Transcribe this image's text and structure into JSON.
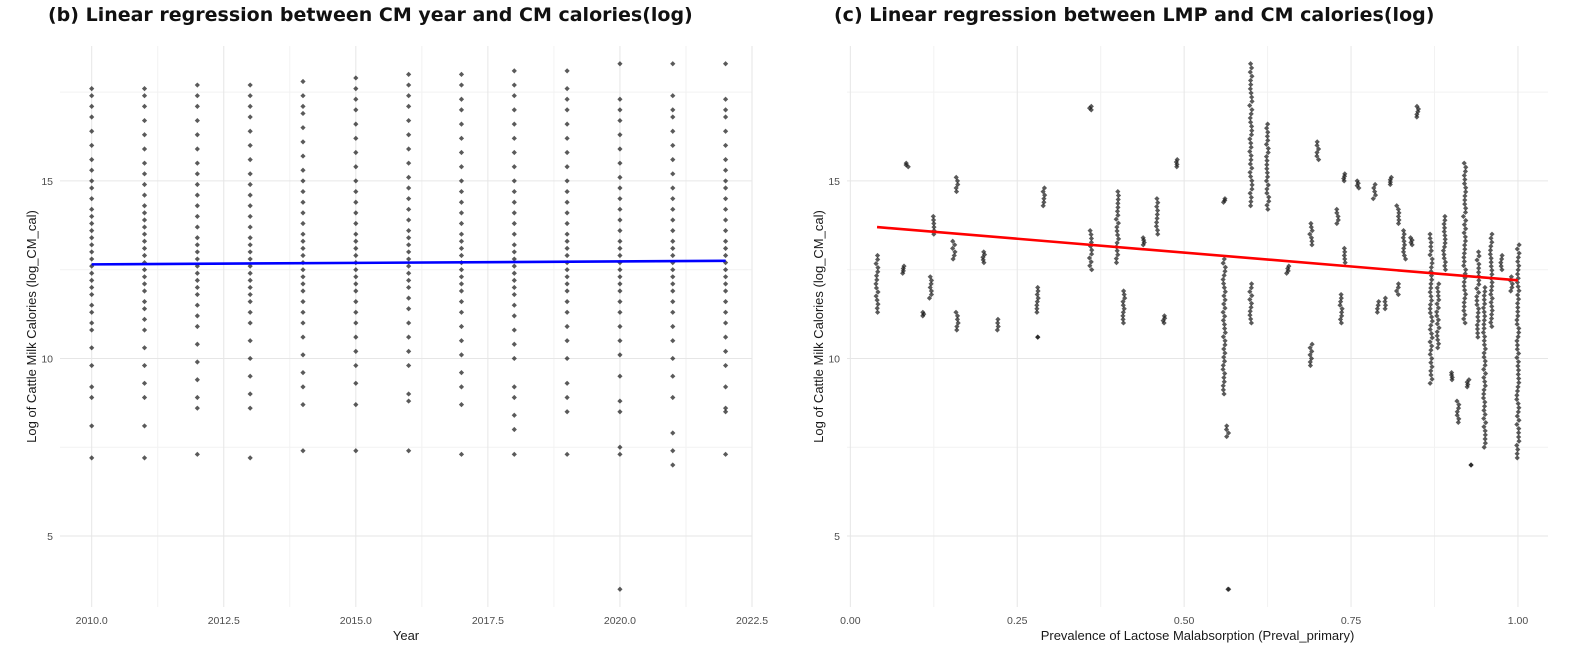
{
  "chart_data": [
    {
      "type": "scatter",
      "title": "(b) Linear regression between CM year and CM calories(log)",
      "xlabel": "Year",
      "ylabel": "Log of Cattle Milk Calories (log_CM_cal)",
      "xlim": [
        2009.4,
        2022.5
      ],
      "ylim": [
        3.0,
        18.8
      ],
      "xticks": [
        2010.0,
        2012.5,
        2015.0,
        2017.5,
        2020.0,
        2022.5
      ],
      "xtick_labels": [
        "2010.0",
        "2012.5",
        "2015.0",
        "2017.5",
        "2020.0",
        "2022.5"
      ],
      "yticks": [
        5,
        10,
        15
      ],
      "ytick_labels": [
        "5",
        "10",
        "15"
      ],
      "grid": true,
      "point_color": "#1a1a1a",
      "line_color": "#0000ff",
      "series": [
        {
          "x": [
            2010,
            2011,
            2012,
            2013,
            2014,
            2015,
            2016,
            2017,
            2018,
            2019,
            2020,
            2021,
            2022
          ],
          "y_values": [
            [
              7.2,
              8.1,
              8.9,
              9.2,
              9.8,
              10.3,
              10.8,
              11.0,
              11.3,
              11.5,
              11.8,
              12.0,
              12.2,
              12.4,
              12.6,
              12.8,
              13.0,
              13.2,
              13.4,
              13.6,
              13.8,
              14.0,
              14.2,
              14.5,
              14.8,
              15.0,
              15.3,
              15.6,
              16.0,
              16.4,
              16.8,
              17.1,
              17.4,
              17.6
            ],
            [
              7.2,
              8.1,
              8.9,
              9.3,
              9.8,
              10.3,
              10.8,
              11.1,
              11.4,
              11.6,
              11.9,
              12.1,
              12.3,
              12.5,
              12.7,
              12.9,
              13.1,
              13.3,
              13.5,
              13.7,
              13.9,
              14.1,
              14.3,
              14.6,
              14.9,
              15.2,
              15.5,
              15.9,
              16.3,
              16.7,
              17.1,
              17.4,
              17.6
            ],
            [
              7.3,
              8.6,
              8.9,
              9.4,
              9.9,
              10.4,
              10.9,
              11.2,
              11.5,
              11.8,
              12.0,
              12.2,
              12.4,
              12.6,
              12.8,
              13.0,
              13.2,
              13.4,
              13.7,
              14.0,
              14.3,
              14.6,
              14.9,
              15.2,
              15.5,
              15.9,
              16.3,
              16.7,
              17.1,
              17.4,
              17.7
            ],
            [
              7.2,
              8.6,
              9.0,
              9.5,
              10.0,
              10.5,
              11.0,
              11.3,
              11.6,
              11.8,
              12.0,
              12.2,
              12.4,
              12.6,
              12.8,
              13.0,
              13.2,
              13.4,
              13.7,
              14.0,
              14.3,
              14.6,
              14.9,
              15.2,
              15.6,
              16.0,
              16.4,
              16.8,
              17.1,
              17.4,
              17.7
            ],
            [
              7.4,
              8.7,
              9.2,
              9.6,
              10.1,
              10.6,
              11.0,
              11.3,
              11.6,
              11.9,
              12.1,
              12.3,
              12.5,
              12.7,
              12.9,
              13.1,
              13.3,
              13.5,
              13.8,
              14.1,
              14.4,
              14.7,
              15.0,
              15.3,
              15.7,
              16.1,
              16.5,
              16.9,
              17.1,
              17.4,
              17.8
            ],
            [
              7.4,
              8.7,
              9.3,
              9.8,
              10.2,
              10.6,
              11.0,
              11.3,
              11.6,
              11.9,
              12.1,
              12.3,
              12.5,
              12.7,
              12.9,
              13.1,
              13.3,
              13.5,
              13.8,
              14.1,
              14.4,
              14.7,
              15.0,
              15.4,
              15.8,
              16.2,
              16.6,
              17.0,
              17.3,
              17.6,
              17.9
            ],
            [
              7.4,
              8.8,
              9.0,
              9.8,
              10.2,
              10.6,
              11.0,
              11.4,
              11.7,
              12.0,
              12.2,
              12.4,
              12.6,
              12.8,
              13.0,
              13.2,
              13.4,
              13.6,
              13.9,
              14.2,
              14.5,
              14.8,
              15.1,
              15.5,
              15.9,
              16.3,
              16.7,
              17.1,
              17.4,
              17.7,
              18.0
            ],
            [
              7.3,
              8.7,
              9.2,
              9.6,
              10.1,
              10.5,
              10.9,
              11.3,
              11.6,
              11.9,
              12.1,
              12.3,
              12.5,
              12.7,
              12.9,
              13.1,
              13.3,
              13.5,
              13.8,
              14.1,
              14.4,
              14.7,
              15.0,
              15.4,
              15.8,
              16.2,
              16.6,
              17.0,
              17.3,
              17.7,
              18.0
            ],
            [
              7.3,
              8.0,
              8.4,
              8.9,
              9.2,
              10.0,
              10.4,
              10.8,
              11.2,
              11.5,
              11.8,
              12.0,
              12.2,
              12.4,
              12.6,
              12.8,
              13.0,
              13.2,
              13.5,
              13.8,
              14.1,
              14.4,
              14.7,
              15.0,
              15.4,
              15.8,
              16.2,
              16.6,
              17.0,
              17.4,
              17.7,
              18.1
            ],
            [
              7.3,
              8.5,
              8.9,
              9.3,
              10.0,
              10.5,
              10.9,
              11.3,
              11.6,
              11.9,
              12.1,
              12.3,
              12.5,
              12.7,
              12.9,
              13.1,
              13.3,
              13.5,
              13.8,
              14.1,
              14.4,
              14.7,
              15.0,
              15.4,
              15.8,
              16.2,
              16.6,
              17.0,
              17.3,
              17.6,
              18.1
            ],
            [
              3.5,
              7.3,
              7.5,
              8.5,
              8.8,
              9.5,
              10.1,
              10.5,
              10.9,
              11.3,
              11.6,
              11.9,
              12.1,
              12.3,
              12.5,
              12.7,
              12.9,
              13.1,
              13.3,
              13.6,
              13.9,
              14.2,
              14.5,
              14.8,
              15.1,
              15.5,
              15.9,
              16.3,
              16.7,
              17.0,
              17.3,
              18.3
            ],
            [
              7.0,
              7.4,
              7.9,
              8.9,
              9.5,
              10.0,
              10.5,
              10.9,
              11.3,
              11.6,
              11.9,
              12.1,
              12.3,
              12.5,
              12.7,
              12.9,
              13.1,
              13.3,
              13.6,
              13.9,
              14.2,
              14.5,
              14.8,
              15.2,
              15.6,
              16.0,
              16.4,
              16.8,
              17.0,
              17.4,
              18.3
            ],
            [
              7.3,
              8.5,
              8.6,
              9.2,
              9.8,
              10.2,
              10.6,
              11.0,
              11.3,
              11.6,
              11.9,
              12.1,
              12.3,
              12.5,
              12.7,
              12.9,
              13.1,
              13.3,
              13.6,
              13.9,
              14.2,
              14.5,
              14.8,
              15.0,
              15.3,
              15.6,
              16.0,
              16.4,
              16.8,
              17.0,
              17.3,
              18.3
            ]
          ]
        }
      ],
      "regression_line": {
        "x": [
          2010,
          2022
        ],
        "y": [
          12.65,
          12.75
        ]
      }
    },
    {
      "type": "scatter",
      "title": "(c) Linear regression between LMP and CM calories(log)",
      "xlabel": "Prevalence of Lactose Malabsorption (Preval_primary)",
      "ylabel": "Log of Cattle Milk Calories (log_CM_cal)",
      "xlim": [
        -0.005,
        1.045
      ],
      "ylim": [
        3.0,
        18.8
      ],
      "xticks": [
        0.0,
        0.25,
        0.5,
        0.75,
        1.0
      ],
      "xtick_labels": [
        "0.00",
        "0.25",
        "0.50",
        "0.75",
        "1.00"
      ],
      "yticks": [
        5,
        10,
        15
      ],
      "ytick_labels": [
        "5",
        "10",
        "15"
      ],
      "grid": true,
      "point_color": "#1a1a1a",
      "line_color": "#ff0000",
      "series": [
        {
          "clusters": [
            {
              "x": 0.04,
              "y_min": 11.3,
              "y_max": 12.9
            },
            {
              "x": 0.08,
              "y_min": 12.4,
              "y_max": 12.6
            },
            {
              "x": 0.085,
              "y_min": 15.4,
              "y_max": 15.5
            },
            {
              "x": 0.11,
              "y_min": 11.2,
              "y_max": 11.3
            },
            {
              "x": 0.12,
              "y_min": 11.7,
              "y_max": 12.3
            },
            {
              "x": 0.125,
              "y_min": 13.5,
              "y_max": 14.0
            },
            {
              "x": 0.155,
              "y_min": 12.8,
              "y_max": 13.3
            },
            {
              "x": 0.16,
              "y_min": 10.8,
              "y_max": 11.3
            },
            {
              "x": 0.16,
              "y_min": 14.7,
              "y_max": 15.1
            },
            {
              "x": 0.2,
              "y_min": 12.7,
              "y_max": 13.0
            },
            {
              "x": 0.22,
              "y_min": 10.8,
              "y_max": 11.1
            },
            {
              "x": 0.28,
              "y_min": 11.3,
              "y_max": 12.0
            },
            {
              "x": 0.28,
              "y_min": 10.6,
              "y_max": 10.6
            },
            {
              "x": 0.29,
              "y_min": 14.3,
              "y_max": 14.8
            },
            {
              "x": 0.36,
              "y_min": 12.5,
              "y_max": 13.6
            },
            {
              "x": 0.36,
              "y_min": 17.0,
              "y_max": 17.1
            },
            {
              "x": 0.4,
              "y_min": 12.7,
              "y_max": 14.7
            },
            {
              "x": 0.41,
              "y_min": 11.0,
              "y_max": 11.9
            },
            {
              "x": 0.44,
              "y_min": 13.2,
              "y_max": 13.4
            },
            {
              "x": 0.46,
              "y_min": 13.5,
              "y_max": 14.5
            },
            {
              "x": 0.47,
              "y_min": 11.0,
              "y_max": 11.2
            },
            {
              "x": 0.49,
              "y_min": 15.4,
              "y_max": 15.6
            },
            {
              "x": 0.56,
              "y_min": 9.0,
              "y_max": 12.8
            },
            {
              "x": 0.56,
              "y_min": 14.4,
              "y_max": 14.5
            },
            {
              "x": 0.565,
              "y_min": 7.8,
              "y_max": 8.1
            },
            {
              "x": 0.565,
              "y_min": 3.5,
              "y_max": 3.5
            },
            {
              "x": 0.6,
              "y_min": 11.0,
              "y_max": 12.1
            },
            {
              "x": 0.6,
              "y_min": 14.3,
              "y_max": 18.3
            },
            {
              "x": 0.625,
              "y_min": 14.2,
              "y_max": 16.6
            },
            {
              "x": 0.655,
              "y_min": 12.4,
              "y_max": 12.6
            },
            {
              "x": 0.69,
              "y_min": 13.2,
              "y_max": 13.8
            },
            {
              "x": 0.69,
              "y_min": 9.8,
              "y_max": 10.4
            },
            {
              "x": 0.7,
              "y_min": 15.6,
              "y_max": 16.1
            },
            {
              "x": 0.73,
              "y_min": 13.8,
              "y_max": 14.2
            },
            {
              "x": 0.735,
              "y_min": 11.0,
              "y_max": 11.8
            },
            {
              "x": 0.74,
              "y_min": 12.7,
              "y_max": 13.1
            },
            {
              "x": 0.74,
              "y_min": 15.0,
              "y_max": 15.2
            },
            {
              "x": 0.76,
              "y_min": 14.8,
              "y_max": 15.0
            },
            {
              "x": 0.785,
              "y_min": 14.5,
              "y_max": 14.9
            },
            {
              "x": 0.79,
              "y_min": 11.3,
              "y_max": 11.6
            },
            {
              "x": 0.8,
              "y_min": 11.4,
              "y_max": 11.7
            },
            {
              "x": 0.81,
              "y_min": 14.9,
              "y_max": 15.1
            },
            {
              "x": 0.82,
              "y_min": 11.8,
              "y_max": 12.1
            },
            {
              "x": 0.82,
              "y_min": 13.8,
              "y_max": 14.3
            },
            {
              "x": 0.83,
              "y_min": 12.8,
              "y_max": 13.6
            },
            {
              "x": 0.84,
              "y_min": 13.2,
              "y_max": 13.4
            },
            {
              "x": 0.85,
              "y_min": 16.8,
              "y_max": 17.1
            },
            {
              "x": 0.87,
              "y_min": 9.3,
              "y_max": 13.5
            },
            {
              "x": 0.88,
              "y_min": 10.3,
              "y_max": 12.1
            },
            {
              "x": 0.89,
              "y_min": 12.5,
              "y_max": 14.0
            },
            {
              "x": 0.9,
              "y_min": 9.4,
              "y_max": 9.6
            },
            {
              "x": 0.91,
              "y_min": 8.2,
              "y_max": 8.8
            },
            {
              "x": 0.92,
              "y_min": 11.0,
              "y_max": 15.5
            },
            {
              "x": 0.925,
              "y_min": 9.2,
              "y_max": 9.4
            },
            {
              "x": 0.93,
              "y_min": 7.0,
              "y_max": 7.0
            },
            {
              "x": 0.94,
              "y_min": 10.6,
              "y_max": 13.0
            },
            {
              "x": 0.95,
              "y_min": 7.5,
              "y_max": 12.0
            },
            {
              "x": 0.96,
              "y_min": 10.9,
              "y_max": 13.5
            },
            {
              "x": 0.975,
              "y_min": 12.5,
              "y_max": 12.9
            },
            {
              "x": 0.99,
              "y_min": 11.9,
              "y_max": 12.3
            },
            {
              "x": 1.0,
              "y_min": 7.2,
              "y_max": 13.2
            }
          ]
        }
      ],
      "regression_line": {
        "x": [
          0.04,
          1.0
        ],
        "y": [
          13.7,
          12.2
        ]
      }
    }
  ]
}
